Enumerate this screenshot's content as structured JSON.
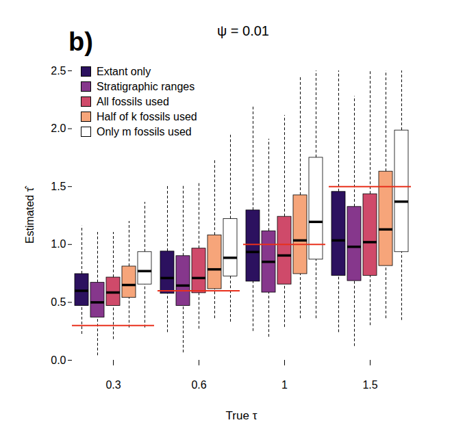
{
  "chart_data": {
    "type": "boxplot",
    "title": "ψ = 0.01",
    "panel_label": "b)",
    "x_label": "True τ",
    "y_label": "Estimated τ̂",
    "categories": [
      "0.3",
      "0.6",
      "1",
      "1.5"
    ],
    "ylim": [
      0,
      2.5
    ],
    "yticks": [
      {
        "value": 0,
        "label": "0.0"
      },
      0.5,
      {
        "value": 1,
        "label": "1.0"
      },
      1.5,
      {
        "value": 2,
        "label": "2.0"
      },
      2.5
    ],
    "legend": "top-left",
    "line_style": "dashed",
    "reference_lines": {
      "values": [
        0.3,
        0.6,
        1,
        1.5
      ],
      "color": "#e8301c"
    },
    "series": [
      {
        "name": "Extant only",
        "color": "#2c115f",
        "values": [
          {
            "low": 0.225,
            "q1": 0.47,
            "median": 0.6,
            "q3": 0.745,
            "high": 1.16
          },
          {
            "low": 0.24,
            "q1": 0.575,
            "median": 0.71,
            "q3": 0.94,
            "high": 1.51
          },
          {
            "low": 0.25,
            "q1": 0.68,
            "median": 0.935,
            "q3": 1.295,
            "high": 2.2
          },
          {
            "low": 0.24,
            "q1": 0.73,
            "median": 1.035,
            "q3": 1.455,
            "high": 2.52
          }
        ]
      },
      {
        "name": "Stratigraphic ranges",
        "color": "#86378c",
        "values": [
          {
            "low": 0.04,
            "q1": 0.37,
            "median": 0.5,
            "q3": 0.67,
            "high": 1.105
          },
          {
            "low": 0.065,
            "q1": 0.47,
            "median": 0.645,
            "q3": 0.9,
            "high": 1.52
          },
          {
            "low": 0.2,
            "q1": 0.585,
            "median": 0.85,
            "q3": 1.115,
            "high": 1.91
          },
          {
            "low": 0.12,
            "q1": 0.685,
            "median": 0.98,
            "q3": 1.325,
            "high": 2.28
          }
        ]
      },
      {
        "name": "All fossils used",
        "color": "#cf4a6a",
        "values": [
          {
            "low": 0.18,
            "q1": 0.47,
            "median": 0.585,
            "q3": 0.715,
            "high": 1.105
          },
          {
            "low": 0.27,
            "q1": 0.58,
            "median": 0.71,
            "q3": 0.965,
            "high": 1.54
          },
          {
            "low": 0.285,
            "q1": 0.655,
            "median": 0.905,
            "q3": 1.24,
            "high": 2.115
          },
          {
            "low": 0.3,
            "q1": 0.73,
            "median": 1.02,
            "q3": 1.435,
            "high": 2.51
          }
        ]
      },
      {
        "name": "Half of k fossils used",
        "color": "#f6a57a",
        "values": [
          {
            "low": 0.28,
            "q1": 0.54,
            "median": 0.65,
            "q3": 0.81,
            "high": 1.2
          },
          {
            "low": 0.36,
            "q1": 0.615,
            "median": 0.785,
            "q3": 1.08,
            "high": 1.725
          },
          {
            "low": 0.36,
            "q1": 0.745,
            "median": 1.035,
            "q3": 1.425,
            "high": 2.445
          },
          {
            "low": 0.36,
            "q1": 0.815,
            "median": 1.13,
            "q3": 1.63,
            "high": 2.5
          }
        ]
      },
      {
        "name": "Only m fossils used",
        "color": "#ffffff",
        "values": [
          {
            "low": 0.28,
            "q1": 0.655,
            "median": 0.77,
            "q3": 0.935,
            "high": 1.365
          },
          {
            "low": 0.33,
            "q1": 0.725,
            "median": 0.885,
            "q3": 1.22,
            "high": 1.945
          },
          {
            "low": 0.36,
            "q1": 0.87,
            "median": 1.195,
            "q3": 1.75,
            "high": 2.55
          },
          {
            "low": 0.345,
            "q1": 0.935,
            "median": 1.37,
            "q3": 1.985,
            "high": 2.6
          }
        ]
      }
    ]
  }
}
